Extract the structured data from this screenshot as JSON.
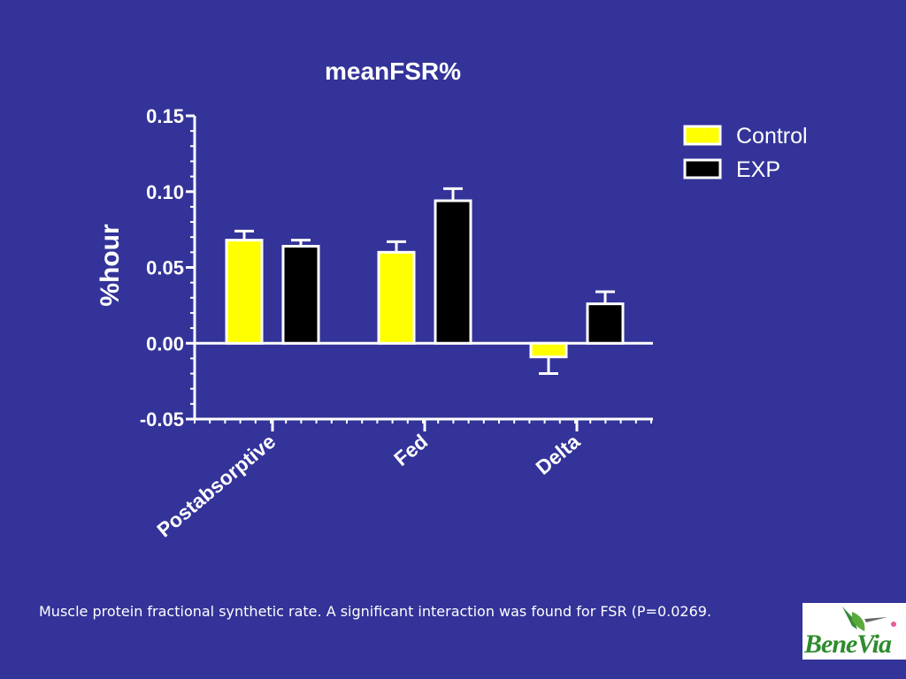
{
  "chart_data": {
    "type": "bar",
    "title": "meanFSR%",
    "ylabel": "%hour",
    "xlabel": "",
    "categories": [
      "Postabsorptive",
      "Fed",
      "Delta"
    ],
    "series": [
      {
        "name": "Control",
        "values": [
          0.068,
          0.06,
          -0.009
        ],
        "errors": [
          0.006,
          0.007,
          0.011
        ],
        "color": "#ffff00"
      },
      {
        "name": "EXP",
        "values": [
          0.064,
          0.094,
          0.026
        ],
        "errors": [
          0.004,
          0.008,
          0.008
        ],
        "color": "#000000"
      }
    ],
    "ylim": [
      -0.05,
      0.15
    ],
    "yticks": [
      "0.15",
      "0.10",
      "0.05",
      "0.00",
      "-0.05"
    ],
    "legend_position": "top-right"
  },
  "caption": "Muscle protein fractional synthetic rate. A significant interaction was found for FSR (P=0.0269.",
  "logo": {
    "text": "BeneVia"
  }
}
